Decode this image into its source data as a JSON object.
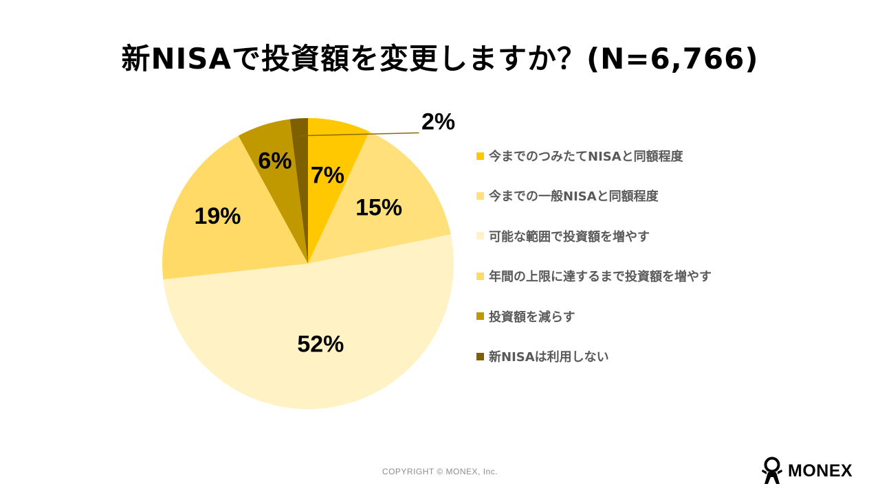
{
  "title": "新NISAで投資額を変更しますか？(N=6,766)",
  "chart_data": {
    "type": "pie",
    "title": "新NISAで投資額を変更しますか？(N=6,766)",
    "slices": [
      {
        "label": "今までのつみたてNISAと同額程度",
        "value": 7,
        "display": "7%",
        "color": "#FFC800"
      },
      {
        "label": "今までの一般NISAと同額程度",
        "value": 15,
        "display": "15%",
        "color": "#FFE07A"
      },
      {
        "label": "可能な範囲で投資額を増やす",
        "value": 52,
        "display": "52%",
        "color": "#FFF2C4"
      },
      {
        "label": "年間の上限に達するまで投資額を増やす",
        "value": 19,
        "display": "19%",
        "color": "#FFDA66"
      },
      {
        "label": "投資額を減らす",
        "value": 6,
        "display": "6%",
        "color": "#C09800"
      },
      {
        "label": "新NISAは利用しない",
        "value": 2,
        "display": "2%",
        "color": "#7F6000"
      }
    ],
    "legend_position": "right"
  },
  "footer": {
    "copyright": "COPYRIGHT © MONEX, Inc.",
    "logo_text": "MONEX",
    "logo_icon": "monex-mascot-icon"
  }
}
